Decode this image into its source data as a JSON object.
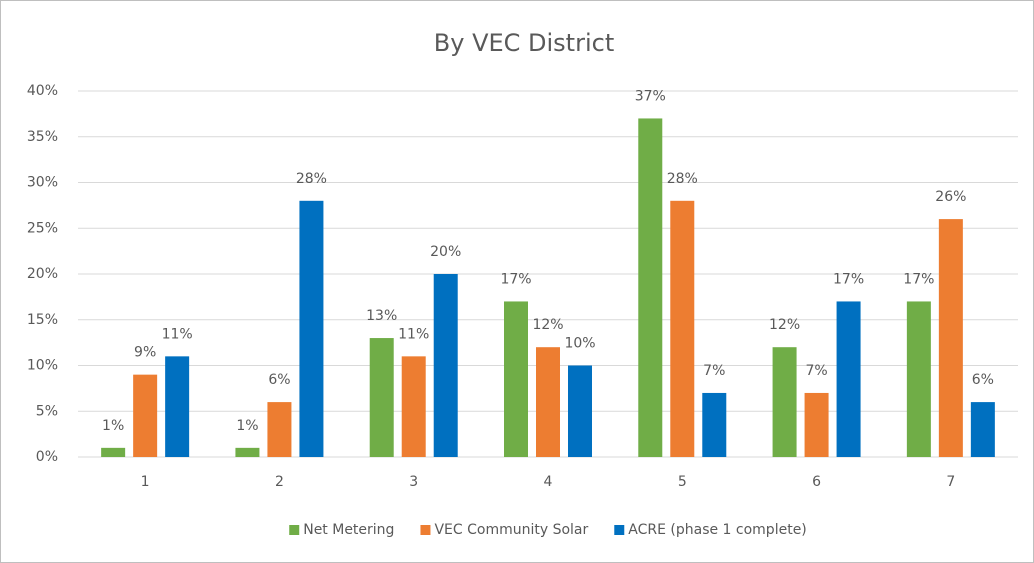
{
  "chart_data": {
    "type": "bar",
    "title": "By VEC District",
    "categories": [
      "1",
      "2",
      "3",
      "4",
      "5",
      "6",
      "7"
    ],
    "series": [
      {
        "name": "Net Metering",
        "color": "#70ad47",
        "values": [
          1,
          1,
          13,
          17,
          37,
          12,
          17
        ],
        "value_labels": [
          "1%",
          "1%",
          "13%",
          "17%",
          "37%",
          "12%",
          "17%"
        ]
      },
      {
        "name": "VEC Community Solar",
        "color": "#ed7d31",
        "values": [
          9,
          6,
          11,
          12,
          28,
          7,
          26
        ],
        "value_labels": [
          "9%",
          "6%",
          "11%",
          "12%",
          "28%",
          "7%",
          "26%"
        ]
      },
      {
        "name": "ACRE (phase 1 complete)",
        "color": "#0070c0",
        "values": [
          11,
          28,
          20,
          10,
          7,
          17,
          6
        ],
        "value_labels": [
          "11%",
          "28%",
          "20%",
          "10%",
          "7%",
          "17%",
          "6%"
        ]
      }
    ],
    "ylim": [
      0,
      40
    ],
    "yticks": [
      {
        "value": 0,
        "label": "0%"
      },
      {
        "value": 5,
        "label": "5%"
      },
      {
        "value": 10,
        "label": "10%"
      },
      {
        "value": 15,
        "label": "15%"
      },
      {
        "value": 20,
        "label": "20%"
      },
      {
        "value": 25,
        "label": "25%"
      },
      {
        "value": 30,
        "label": "30%"
      },
      {
        "value": 35,
        "label": "35%"
      },
      {
        "value": 40,
        "label": "40%"
      }
    ],
    "grid": true,
    "legend": "bottom"
  }
}
